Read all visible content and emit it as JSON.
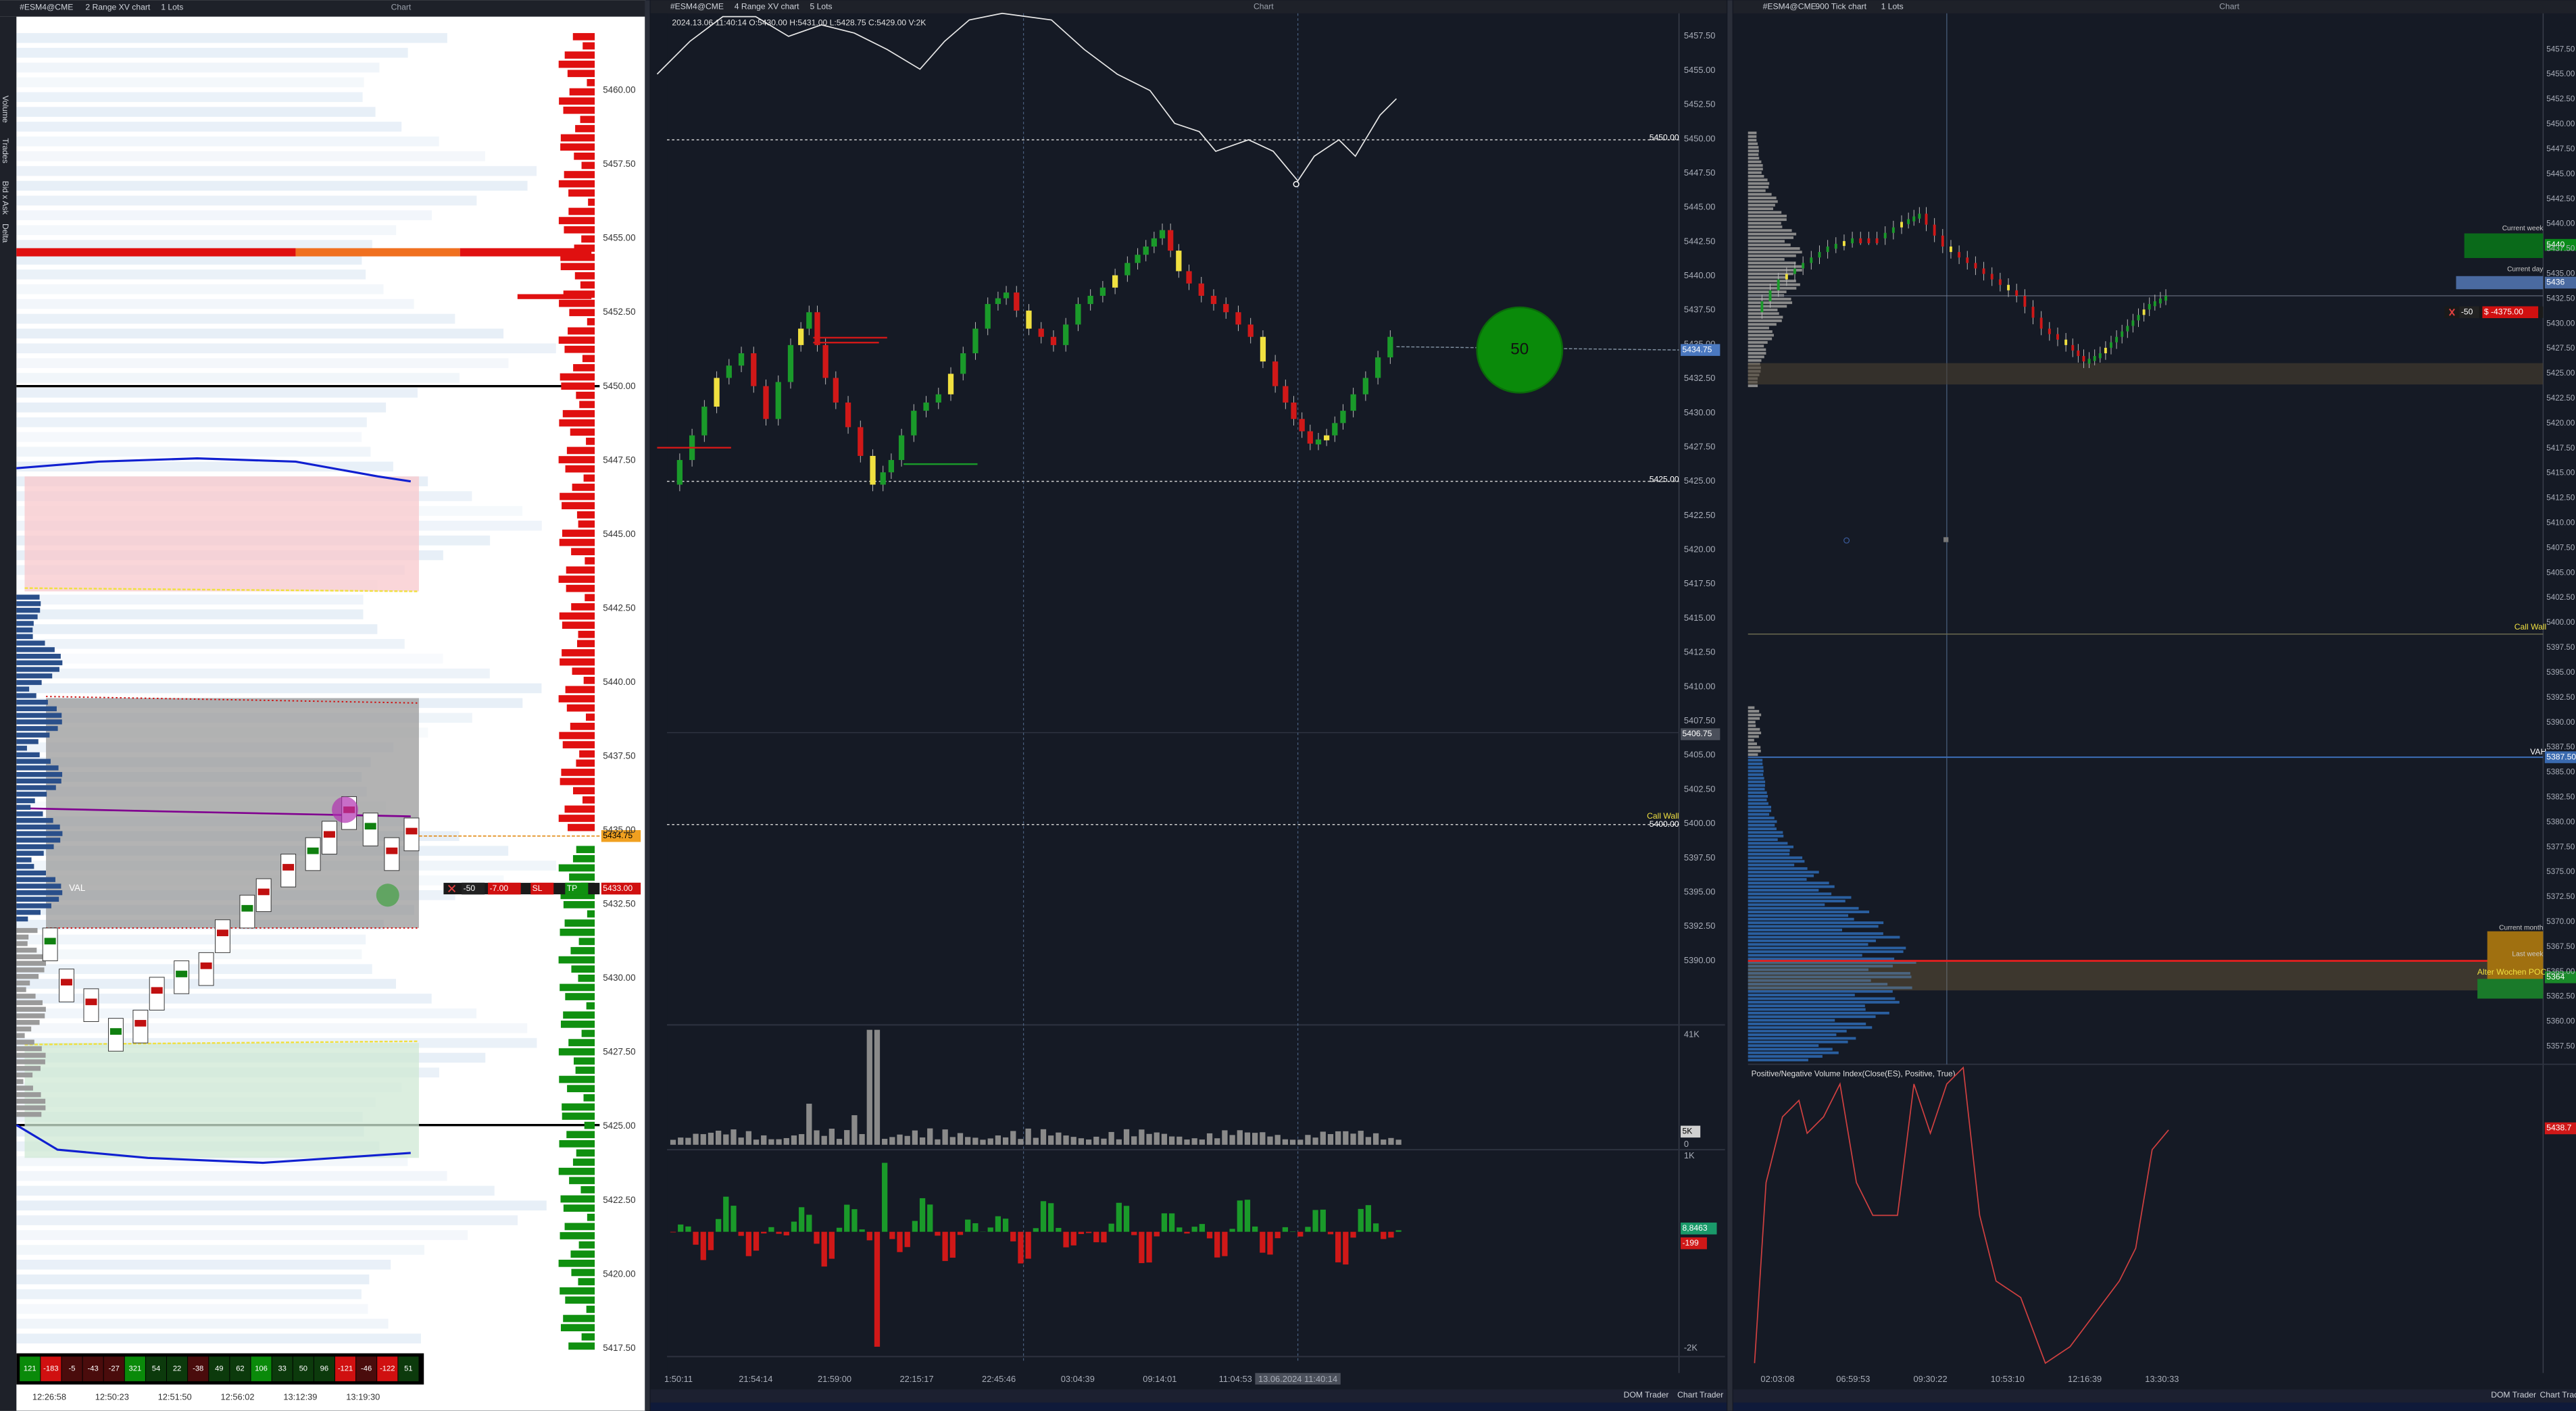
{
  "panels": [
    {
      "instrument": "#ESM4@CME",
      "chart_type": "2 Range XV chart",
      "lots": "1 Lots",
      "title": "Chart",
      "side_tabs": [
        "Volume",
        "Trades",
        "Bid x Ask",
        "Delta"
      ],
      "price_axis": [
        "5460.00",
        "5457.50",
        "5455.00",
        "5452.50",
        "5450.00",
        "5447.50",
        "5445.00",
        "5442.50",
        "5440.00",
        "5437.50",
        "5435.00",
        "5432.50",
        "5430.00",
        "5427.50",
        "5425.00",
        "5422.50",
        "5420.00",
        "5417.50"
      ],
      "times": [
        "12:26:58",
        "12:50:23",
        "12:51:50",
        "12:56:02",
        "13:12:39",
        "13:19:30"
      ],
      "delta_row": [
        121,
        -183,
        -5,
        -43,
        -27,
        321,
        54,
        22,
        -38,
        49,
        62,
        106,
        33,
        50,
        96,
        -121,
        -46,
        -122,
        51
      ],
      "value_area_label": "VAL",
      "order": {
        "qty": "-50",
        "pnl": "-7.00",
        "sl": "SL",
        "tp": "TP",
        "price": "5433.00"
      },
      "last_price": "5434.75"
    },
    {
      "instrument": "#ESM4@CME",
      "chart_type": "4 Range XV chart",
      "lots": "5 Lots",
      "title": "Chart",
      "ohlc": "2024.13.06 11:40:14 O:5430.00 H:5431.00 L:5428.75 C:5429.00 V:2K",
      "price_axis": [
        "5457.50",
        "5455.00",
        "5452.50",
        "5450.00",
        "5447.50",
        "5445.00",
        "5442.50",
        "5440.00",
        "5437.50",
        "5435.00",
        "5432.50",
        "5430.00",
        "5427.50",
        "5425.00",
        "5422.50",
        "5420.00",
        "5417.50",
        "5415.00",
        "5412.50",
        "5410.00",
        "5407.50",
        "5405.00",
        "5402.50",
        "5400.00",
        "5397.50",
        "5395.00",
        "5392.50",
        "5390.00"
      ],
      "levels": [
        "5450.00",
        "5425.00",
        "Call Wall",
        "5400.00"
      ],
      "last_price": "5434.75",
      "marker_price": "5406.75",
      "bubble": "50",
      "volume_axis": [
        "41K",
        "5K",
        "0"
      ],
      "delta_axis": [
        "1K",
        "8,8463",
        "-199",
        "-2K"
      ],
      "times": [
        "1:50:11",
        "21:54:14",
        "21:59:00",
        "22:15:17",
        "22:45:46",
        "03:04:39",
        "09:14:01",
        "11:04:53",
        "13.06.2024 11:40:14"
      ],
      "footer": [
        "DOM Trader",
        "Chart Trader"
      ]
    },
    {
      "instrument": "#ESM4@CME",
      "chart_type": "900 Tick chart",
      "lots": "1 Lots",
      "title": "Chart",
      "price_axis": [
        "5457.50",
        "5455.00",
        "5452.50",
        "5450.00",
        "5447.50",
        "5445.00",
        "5442.50",
        "5440.00",
        "5437.50",
        "5435.00",
        "5432.50",
        "5430.00",
        "5427.50",
        "5425.00",
        "5422.50",
        "5420.00",
        "5417.50",
        "5415.00",
        "5412.50",
        "5410.00",
        "5407.50",
        "5405.00",
        "5402.50",
        "5400.00",
        "5397.50",
        "5395.00",
        "5392.50",
        "5390.00",
        "5387.50",
        "5385.00",
        "5382.50",
        "5380.00",
        "5377.50",
        "5375.00",
        "5372.50",
        "5370.00",
        "5367.50",
        "5365.00",
        "5362.50",
        "5360.00",
        "5357.50"
      ],
      "annotations": {
        "current_week": "Current week",
        "week_price": "5440",
        "current_day": "Current day",
        "day_price": "5436",
        "call_wall": "Call Wall",
        "vah": "VAH",
        "vah_price": "5387.50",
        "current_month": "Current month",
        "last_week": "Last week",
        "poc": "Alter Wochen POC",
        "poc_price": "5364"
      },
      "position": {
        "qty": "-50",
        "pnl": "$ -4375.00"
      },
      "indicator_title": "Positive/Negative Volume Index(Close(ES), Positive, True)",
      "indicator_value": "5438.7",
      "times": [
        "02:03:08",
        "06:59:53",
        "09:30:22",
        "10:53:10",
        "12:16:39",
        "13:30:33"
      ],
      "footer": [
        "DOM Trader",
        "Chart Trader"
      ]
    }
  ]
}
